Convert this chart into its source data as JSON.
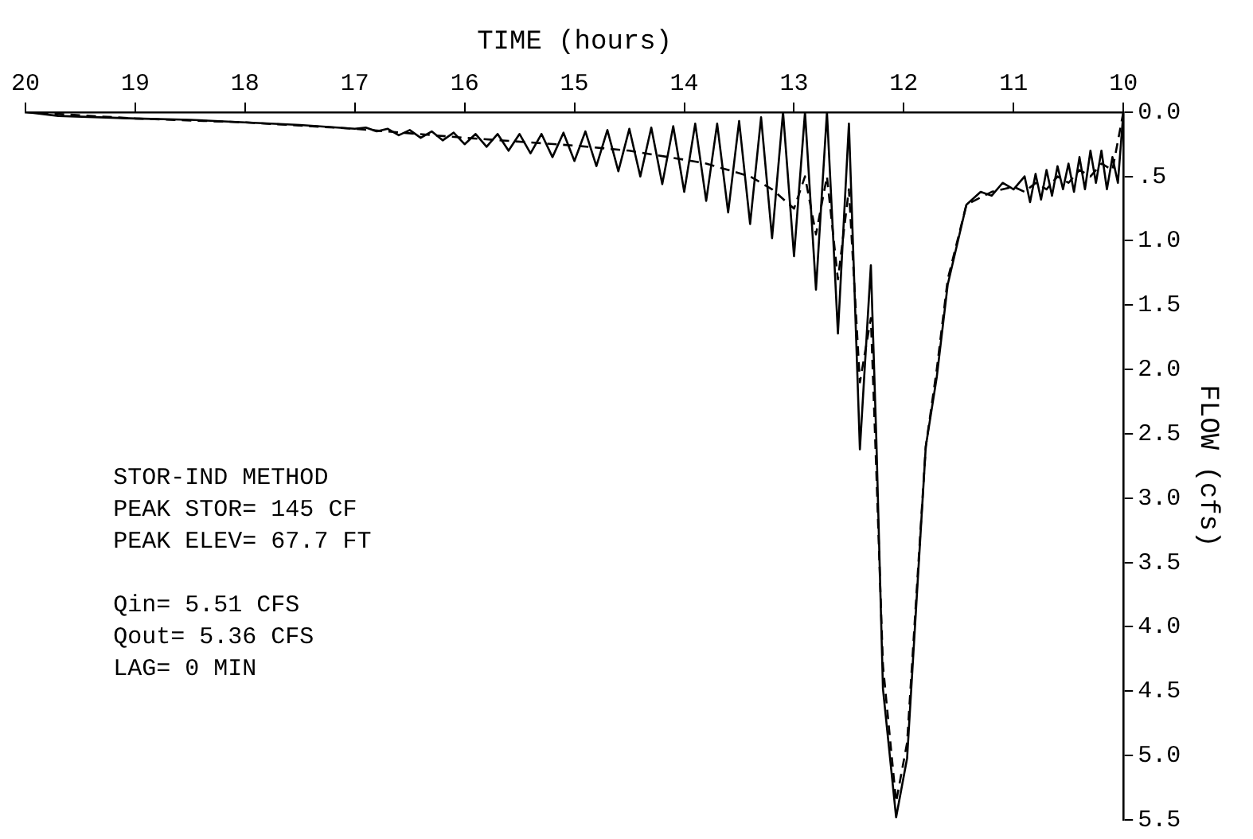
{
  "chart_data": {
    "type": "line",
    "xlabel": "TIME (hours)",
    "ylabel": "FLOW (cfs)",
    "xlim": [
      20,
      10
    ],
    "xticks": [
      10,
      11,
      12,
      13,
      14,
      15,
      16,
      17,
      18,
      19,
      20
    ],
    "ylim": [
      5.5,
      0
    ],
    "yticks": [
      {
        "value": 0,
        "label": "0.0"
      },
      {
        "value": 0.5,
        "label": ".5"
      },
      {
        "value": 1,
        "label": "1.0"
      },
      {
        "value": 1.5,
        "label": "1.5"
      },
      {
        "value": 2,
        "label": "2.0"
      },
      {
        "value": 2.5,
        "label": "2.5"
      },
      {
        "value": 3,
        "label": "3.0"
      },
      {
        "value": 3.5,
        "label": "3.5"
      },
      {
        "value": 4,
        "label": "4.0"
      },
      {
        "value": 4.5,
        "label": "4.5"
      },
      {
        "value": 5,
        "label": "5.0"
      },
      {
        "value": 5.5,
        "label": "5.5"
      }
    ],
    "grid": false,
    "legend": false,
    "marker": "none",
    "annotations": [
      "STOR-IND METHOD",
      "PEAK STOR= 145 CF",
      "PEAK ELEV= 67.7 FT",
      "Qin= 5.51 CFS",
      "Qout= 5.36 CFS",
      "LAG= 0 MIN"
    ],
    "series": [
      {
        "color": "#000000",
        "line_style": "solid",
        "x": [
          10.0,
          10.05,
          10.1,
          10.15,
          10.2,
          10.25,
          10.3,
          10.35,
          10.4,
          10.45,
          10.5,
          10.55,
          10.6,
          10.65,
          10.7,
          10.75,
          10.8,
          10.85,
          10.9,
          11.0,
          11.1,
          11.2,
          11.3,
          11.43,
          11.6,
          11.7,
          11.8,
          11.97,
          12.07,
          12.19,
          12.25,
          12.3,
          12.4,
          12.5,
          12.6,
          12.7,
          12.8,
          12.9,
          13.0,
          13.1,
          13.2,
          13.3,
          13.4,
          13.5,
          13.6,
          13.7,
          13.8,
          13.9,
          14.0,
          14.1,
          14.2,
          14.3,
          14.4,
          14.5,
          14.6,
          14.7,
          14.8,
          14.9,
          15.0,
          15.1,
          15.2,
          15.3,
          15.4,
          15.5,
          15.6,
          15.7,
          15.8,
          15.9,
          16.0,
          16.1,
          16.2,
          16.3,
          16.4,
          16.5,
          16.6,
          16.7,
          16.8,
          16.9,
          17.0,
          17.5,
          18.0,
          18.5,
          19.0,
          19.7,
          20.0
        ],
        "values": [
          0,
          0.55,
          0.35,
          0.6,
          0.3,
          0.55,
          0.3,
          0.6,
          0.35,
          0.62,
          0.4,
          0.6,
          0.42,
          0.65,
          0.45,
          0.68,
          0.48,
          0.7,
          0.5,
          0.6,
          0.55,
          0.65,
          0.62,
          0.72,
          1.34,
          2.06,
          2.6,
          5.02,
          5.48,
          4.48,
          2.55,
          1.19,
          2.62,
          0.09,
          1.72,
          0,
          1.38,
          0,
          1.12,
          0,
          0.98,
          0.04,
          0.87,
          0.07,
          0.78,
          0.09,
          0.69,
          0.09,
          0.62,
          0.11,
          0.56,
          0.12,
          0.5,
          0.13,
          0.46,
          0.14,
          0.42,
          0.15,
          0.38,
          0.16,
          0.35,
          0.17,
          0.32,
          0.17,
          0.3,
          0.17,
          0.27,
          0.17,
          0.25,
          0.16,
          0.22,
          0.15,
          0.2,
          0.14,
          0.18,
          0.13,
          0.15,
          0.12,
          0.13,
          0.1,
          0.08,
          0.06,
          0.05,
          0.03,
          0
        ]
      },
      {
        "color": "#000000",
        "line_style": "dashed",
        "x": [
          10.0,
          10.1,
          10.2,
          10.3,
          10.4,
          10.5,
          10.6,
          10.7,
          10.8,
          10.9,
          11.0,
          11.2,
          11.43,
          11.6,
          11.7,
          11.8,
          11.97,
          12.07,
          12.19,
          12.25,
          12.3,
          12.4,
          12.5,
          12.6,
          12.7,
          12.8,
          12.9,
          13.0,
          13.2,
          13.4,
          13.6,
          13.8,
          14.0,
          14.5,
          15.0,
          16.0,
          17.0,
          18.0,
          19.0,
          20.0
        ],
        "values": [
          0,
          0.45,
          0.4,
          0.5,
          0.45,
          0.55,
          0.5,
          0.6,
          0.55,
          0.62,
          0.58,
          0.62,
          0.72,
          1.3,
          2.0,
          2.6,
          4.9,
          5.36,
          4.3,
          2.8,
          1.6,
          2.1,
          0.6,
          1.3,
          0.5,
          0.95,
          0.5,
          0.75,
          0.6,
          0.5,
          0.45,
          0.4,
          0.37,
          0.3,
          0.26,
          0.2,
          0.13,
          0.08,
          0.05,
          0
        ]
      }
    ]
  }
}
